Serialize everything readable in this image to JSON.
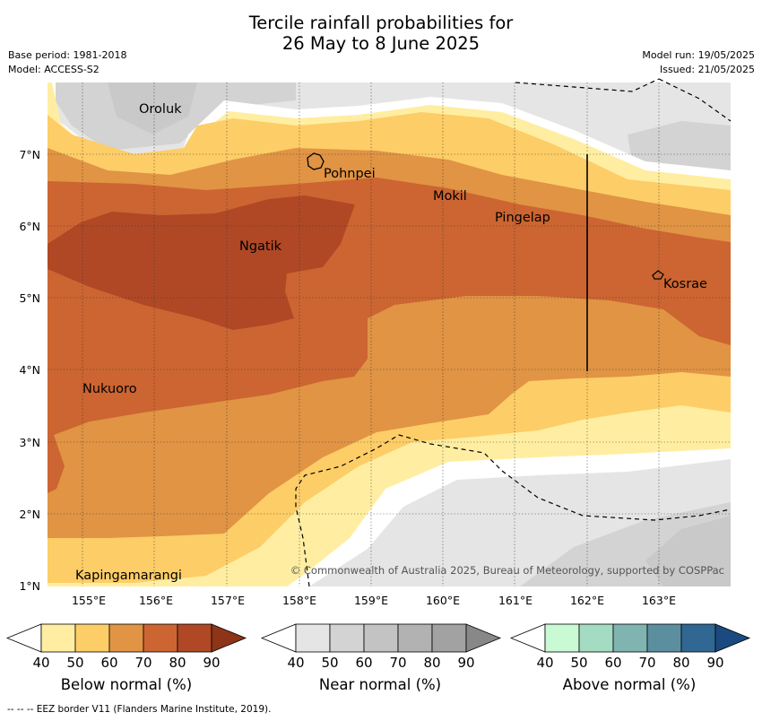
{
  "title": {
    "line1": "Tercile rainfall probabilities for",
    "line2": "26 May to 8 June 2025"
  },
  "base_period": "Base period: 1981-2018",
  "model": "Model: ACCESS-S2",
  "model_run": "Model run: 19/05/2025",
  "issued": "Issued: 21/05/2025",
  "map": {
    "longitude_labels": [
      "155°E",
      "156°E",
      "157°E",
      "158°E",
      "159°E",
      "160°E",
      "161°E",
      "162°E",
      "163°E"
    ],
    "latitude_labels": [
      "7°N",
      "6°N",
      "5°N",
      "4°N",
      "3°N",
      "2°N",
      "1°N"
    ],
    "places": [
      "Oroluk",
      "Pohnpei",
      "Mokil",
      "Pingelap",
      "Ngatik",
      "Kosrae",
      "Nukuoro",
      "Kapingamarangi"
    ],
    "copyright": "© Commonwealth of Australia 2025, Bureau of Meteorology, supported by COSPPac"
  },
  "legend": {
    "ticks": [
      "40",
      "50",
      "60",
      "70",
      "80",
      "90"
    ],
    "below_label": "Below normal (%)",
    "near_label": "Near normal (%)",
    "above_label": "Above normal (%)",
    "below_colors": [
      "#ffffff",
      "#ffeea1",
      "#fdcd67",
      "#e09444",
      "#cc6531",
      "#b04826",
      "#8e3418"
    ],
    "near_colors": [
      "#ffffff",
      "#e5e5e5",
      "#d3d3d3",
      "#c3c3c3",
      "#b2b2b2",
      "#a2a2a2",
      "#888888"
    ],
    "above_colors": [
      "#ffffff",
      "#c9fad3",
      "#a4dbc3",
      "#80b4b0",
      "#5b8fa0",
      "#306793",
      "#1a4a80"
    ]
  },
  "footnote": "-- -- -- EEZ border V11 (Flanders Marine Institute, 2019)."
}
